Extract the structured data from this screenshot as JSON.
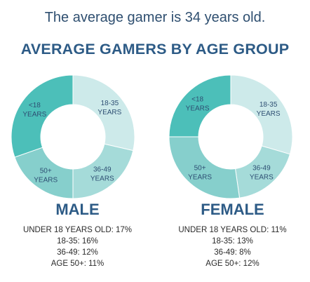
{
  "headline": "The average gamer is 34 years old.",
  "title": "AVERAGE GAMERS BY AGE GROUP",
  "colors": {
    "under18": "#4cbfb9",
    "age18_35": "#cdeaea",
    "age36_49": "#a5dbd9",
    "age50plus": "#86cfcc",
    "label": "#2e4f73"
  },
  "chart_data": [
    {
      "type": "pie",
      "title": "MALE",
      "categories": [
        "<18 YEARS",
        "18-35 YEARS",
        "36-49 YEARS",
        "50+ YEARS"
      ],
      "values": [
        17,
        16,
        12,
        11
      ],
      "stats": [
        "UNDER 18 YEARS OLD: 17%",
        "18-35: 16%",
        "36-49: 12%",
        "AGE 50+: 11%"
      ]
    },
    {
      "type": "pie",
      "title": "FEMALE",
      "categories": [
        "<18 YEARS",
        "18-35 YEARS",
        "36-49 YEARS",
        "50+ YEARS"
      ],
      "values": [
        11,
        13,
        8,
        12
      ],
      "stats": [
        "UNDER 18 YEARS OLD: 11%",
        "18-35: 13%",
        "36-49: 8%",
        "AGE 50+: 12%"
      ]
    }
  ]
}
